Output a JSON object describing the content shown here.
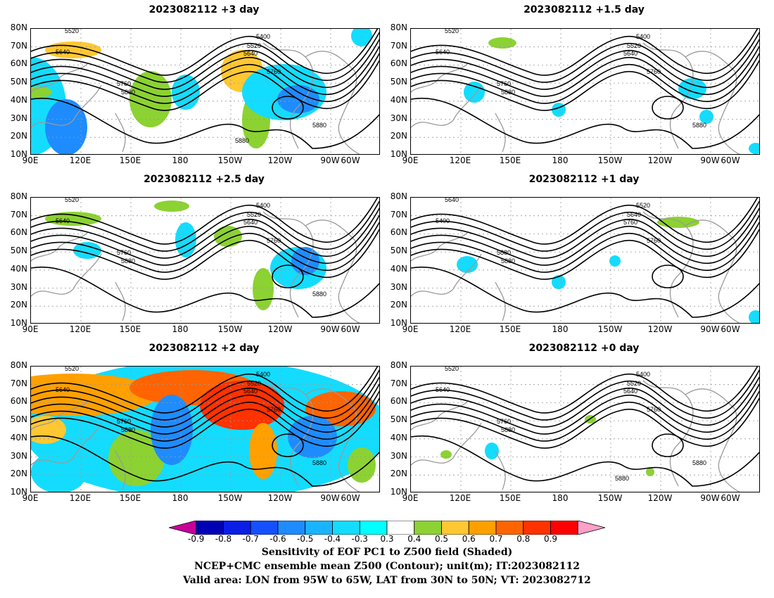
{
  "panels": [
    {
      "title": "2023082112 +3 day",
      "contour_labels": [
        "5520",
        "5640",
        "5400",
        "5520",
        "5640",
        "5760",
        "5760",
        "5880",
        "5880",
        "5880"
      ]
    },
    {
      "title": "2023082112 +1.5 day",
      "contour_labels": [
        "5520",
        "5640",
        "5400",
        "5520",
        "5640",
        "5760",
        "5760",
        "5880",
        "5880"
      ]
    },
    {
      "title": "2023082112 +2.5 day",
      "contour_labels": [
        "5520",
        "5640",
        "5400",
        "5520",
        "5640",
        "5760",
        "5760",
        "5880",
        "5880"
      ]
    },
    {
      "title": "2023082112 +1 day",
      "contour_labels": [
        "5640",
        "5400",
        "5520",
        "5640",
        "5760",
        "5760",
        "5880",
        "5880"
      ]
    },
    {
      "title": "2023082112 +2 day",
      "contour_labels": [
        "5520",
        "5640",
        "5400",
        "5520",
        "5640",
        "5760",
        "5760",
        "5880",
        "5880"
      ]
    },
    {
      "title": "2023082112 +0 day",
      "contour_labels": [
        "5520",
        "5640",
        "5400",
        "5520",
        "5640",
        "5760",
        "5760",
        "5880",
        "5880",
        "5880"
      ]
    }
  ],
  "axes": {
    "lat_labels": [
      "80N",
      "70N",
      "60N",
      "50N",
      "40N",
      "30N",
      "20N",
      "10N"
    ],
    "lon_labels": [
      "90E",
      "120E",
      "150E",
      "180",
      "150W",
      "120W",
      "90W",
      "60W"
    ]
  },
  "colorbar": {
    "labels": [
      "-0.9",
      "-0.8",
      "-0.7",
      "-0.6",
      "-0.5",
      "-0.4",
      "-0.3",
      "0.3",
      "0.4",
      "0.5",
      "0.6",
      "0.7",
      "0.8",
      "0.9"
    ],
    "colors": [
      "#c8009a",
      "#0000b4",
      "#0a1ee6",
      "#1450ff",
      "#1e8cff",
      "#19b4ff",
      "#14dcff",
      "#00ffff",
      "#ffffff",
      "#8cd232",
      "#ffc832",
      "#ffa000",
      "#ff6400",
      "#ff3200",
      "#ff0000",
      "#ffa0c8"
    ]
  },
  "footer": {
    "line1": "Sensitivity of EOF PC1 to Z500 field (Shaded)",
    "line2": "NCEP+CMC ensemble mean Z500 (Contour); unit(m); IT:2023082112",
    "line3": "Valid area: LON from 95W to 65W, LAT from 30N to 50N; VT: 2023082712"
  }
}
